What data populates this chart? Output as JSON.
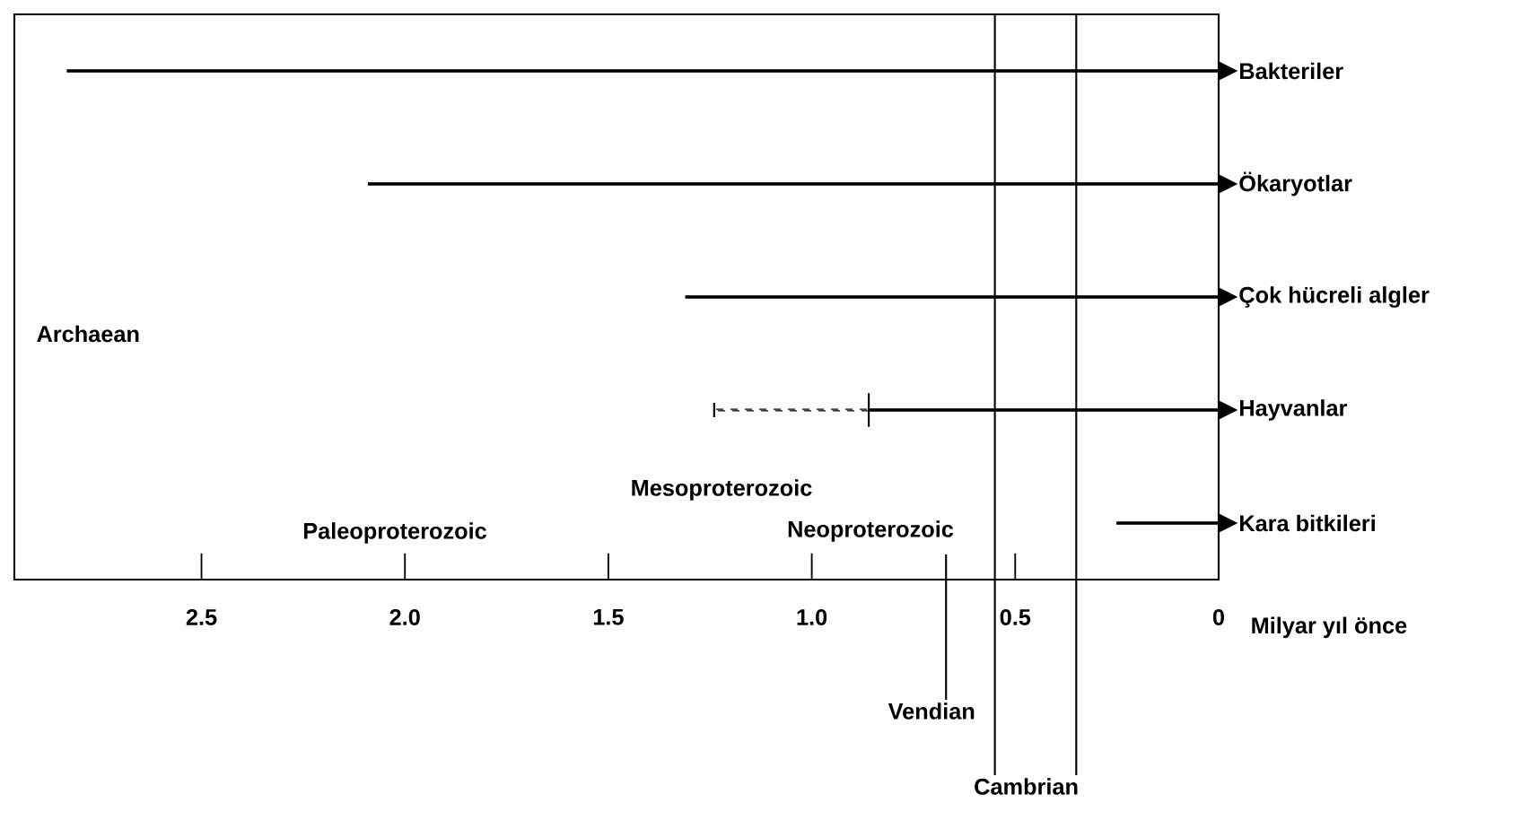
{
  "chart_data": {
    "type": "bar",
    "orientation": "horizontal",
    "stacked": true,
    "xlabel": "Milyar yıl önce",
    "categories": [
      "Bakteriler",
      "Ökaryotlar",
      "Çok hücreli algler",
      "Hayvanlar",
      "Kara bitkileri"
    ],
    "series": [
      {
        "color": "#000000",
        "values": [
          2.83,
          2.09,
          1.31,
          0.86,
          0.25
        ]
      },
      {
        "color": "#000000",
        "line_style": "dashed",
        "values": [
          null,
          null,
          null,
          0.38,
          null
        ]
      }
    ],
    "xlim": [
      2.96,
      0
    ],
    "xticks": [
      {
        "value": 2.5,
        "label": "2.5"
      },
      {
        "value": 2,
        "label": "2.0"
      },
      {
        "value": 1.5,
        "label": "1.5"
      },
      {
        "value": 1,
        "label": "1.0"
      },
      {
        "value": 0.5,
        "label": "0.5"
      },
      {
        "value": 0,
        "label": "0"
      }
    ],
    "ref_lines": [
      {
        "axis": "x",
        "value": 0.67,
        "label": "Vendian"
      },
      {
        "axis": "x",
        "value": 0.55,
        "label": "Cambrian"
      },
      {
        "axis": "x",
        "value": 0.35
      }
    ],
    "annotations": [
      "Archaean",
      "Paleoproterozoic",
      "Mesoproterozoic",
      "Neoproterozoic"
    ],
    "grid": false
  }
}
